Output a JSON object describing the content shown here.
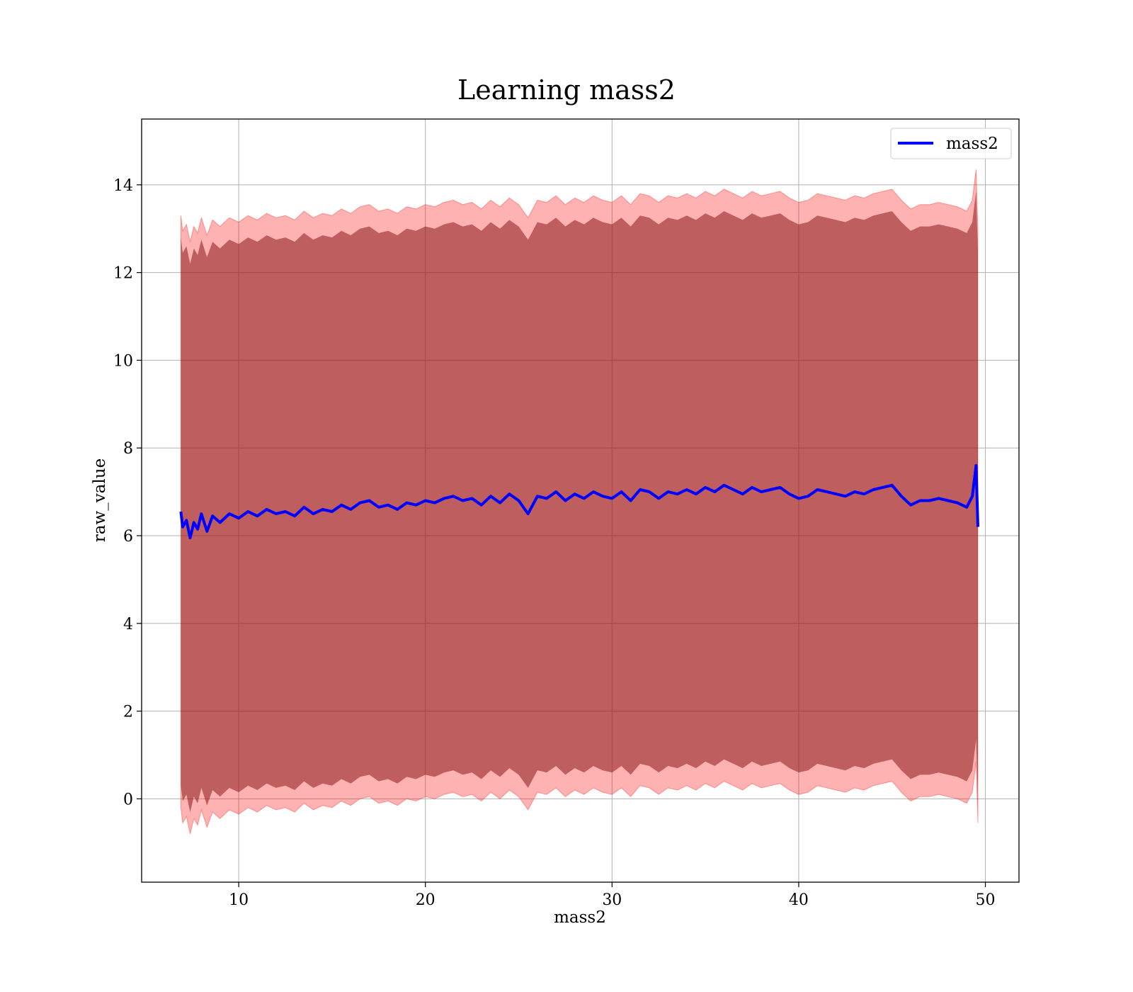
{
  "chart_data": {
    "type": "line",
    "title": "Learning mass2",
    "xlabel": "mass2",
    "ylabel": "raw_value",
    "xlim": [
      4.8,
      51.8
    ],
    "ylim": [
      -1.9,
      15.5
    ],
    "xticks": [
      10,
      20,
      30,
      40,
      50
    ],
    "yticks": [
      0,
      2,
      4,
      6,
      8,
      10,
      12,
      14
    ],
    "xtick_labels": [
      "10",
      "20",
      "30",
      "40",
      "50"
    ],
    "ytick_labels": [
      "0",
      "2",
      "4",
      "6",
      "8",
      "10",
      "12",
      "14"
    ],
    "grid": true,
    "legend_position": "top-right",
    "colors": {
      "line": "#0000ff",
      "band_outer": "#ff0000",
      "band_inner": "#8b1a1a"
    },
    "series": [
      {
        "name": "mass2",
        "x": [
          6.9,
          7.0,
          7.2,
          7.4,
          7.6,
          7.8,
          8.0,
          8.3,
          8.6,
          9.0,
          9.5,
          10.0,
          10.5,
          11.0,
          11.5,
          12.0,
          12.5,
          13.0,
          13.5,
          14.0,
          14.5,
          15.0,
          15.5,
          16.0,
          16.5,
          17.0,
          17.5,
          18.0,
          18.5,
          19.0,
          19.5,
          20.0,
          20.5,
          21.0,
          21.5,
          22.0,
          22.5,
          23.0,
          23.5,
          24.0,
          24.5,
          25.0,
          25.5,
          26.0,
          26.5,
          27.0,
          27.5,
          28.0,
          28.5,
          29.0,
          29.5,
          30.0,
          30.5,
          31.0,
          31.5,
          32.0,
          32.5,
          33.0,
          33.5,
          34.0,
          34.5,
          35.0,
          35.5,
          36.0,
          36.5,
          37.0,
          37.5,
          38.0,
          38.5,
          39.0,
          39.5,
          40.0,
          40.5,
          41.0,
          41.5,
          42.0,
          42.5,
          43.0,
          43.5,
          44.0,
          44.5,
          45.0,
          45.5,
          46.0,
          46.5,
          47.0,
          47.5,
          48.0,
          48.5,
          49.0,
          49.3,
          49.5,
          49.6
        ],
        "values": [
          6.55,
          6.2,
          6.35,
          5.95,
          6.3,
          6.15,
          6.5,
          6.1,
          6.45,
          6.3,
          6.5,
          6.4,
          6.55,
          6.45,
          6.6,
          6.5,
          6.55,
          6.45,
          6.65,
          6.5,
          6.6,
          6.55,
          6.7,
          6.6,
          6.75,
          6.8,
          6.65,
          6.7,
          6.6,
          6.75,
          6.7,
          6.8,
          6.75,
          6.85,
          6.9,
          6.8,
          6.85,
          6.7,
          6.9,
          6.75,
          6.95,
          6.8,
          6.5,
          6.9,
          6.85,
          7.0,
          6.8,
          6.95,
          6.85,
          7.0,
          6.9,
          6.85,
          7.0,
          6.8,
          7.05,
          7.0,
          6.85,
          7.0,
          6.95,
          7.05,
          6.95,
          7.1,
          7.0,
          7.15,
          7.05,
          6.95,
          7.1,
          7.0,
          7.05,
          7.1,
          6.95,
          6.85,
          6.9,
          7.05,
          7.0,
          6.95,
          6.9,
          7.0,
          6.95,
          7.05,
          7.1,
          7.15,
          6.9,
          6.7,
          6.8,
          6.8,
          6.85,
          6.8,
          6.75,
          6.65,
          6.9,
          7.6,
          6.2
        ]
      }
    ],
    "bands": [
      {
        "label": "outer",
        "upper_offset": 6.75,
        "lower_offset": -6.75
      },
      {
        "label": "inner",
        "upper_offset": 6.25,
        "lower_offset": -6.25
      }
    ]
  }
}
